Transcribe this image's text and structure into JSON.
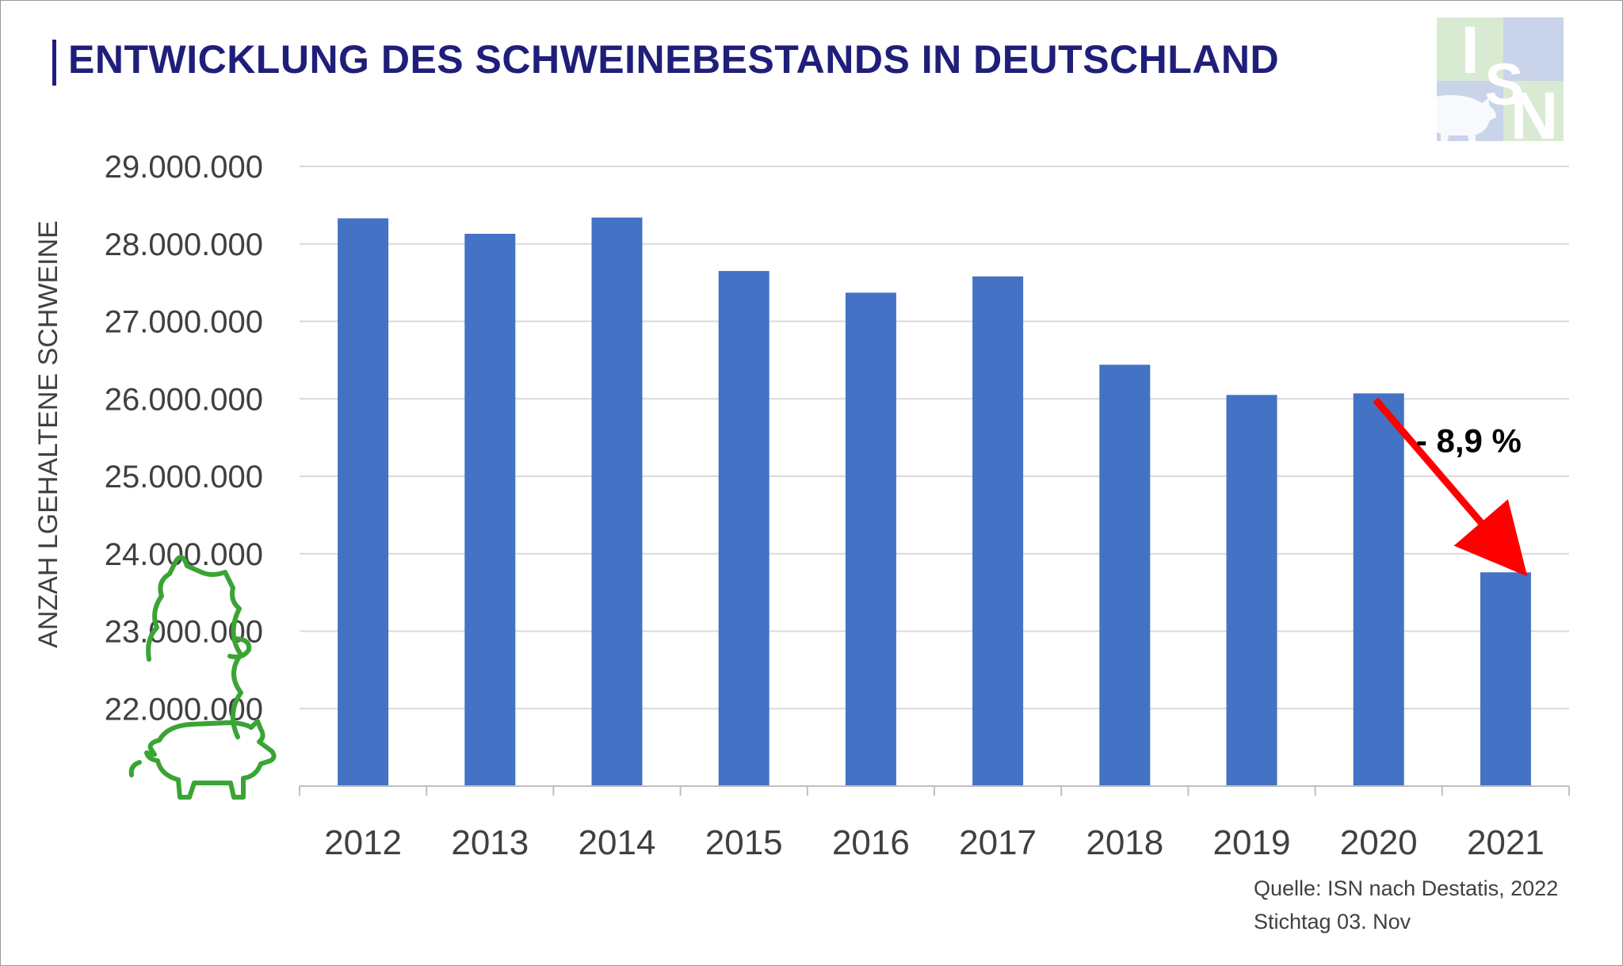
{
  "chart_data": {
    "type": "bar",
    "title": "ENTWICKLUNG DES SCHWEINEBESTANDS IN DEUTSCHLAND",
    "xlabel": "",
    "ylabel": "ANZAH LGEHALTENE SCHWEINE",
    "categories": [
      "2012",
      "2013",
      "2014",
      "2015",
      "2016",
      "2017",
      "2018",
      "2019",
      "2020",
      "2021"
    ],
    "values": [
      28330000,
      28130000,
      28340000,
      27650000,
      27370000,
      27580000,
      26440000,
      26050000,
      26070000,
      23760000
    ],
    "ylim": [
      21000000,
      29000000
    ],
    "yticks": [
      22000000,
      23000000,
      24000000,
      25000000,
      26000000,
      27000000,
      28000000,
      29000000
    ],
    "ytick_labels": [
      "22.000.000",
      "23.000.000",
      "24.000.000",
      "25.000.000",
      "26.000.000",
      "27.000.000",
      "28.000.000",
      "29.000.000"
    ],
    "grid": true,
    "bar_color": "#4472c4",
    "annotation": {
      "text": "- 8,9 %",
      "from_category": "2020",
      "to_category": "2021",
      "color": "#ff0000"
    }
  },
  "source": {
    "line1": "Quelle: ISN nach Destatis, 2022",
    "line2": "Stichtag 03. Nov"
  },
  "logo": {
    "letters": [
      "I",
      "S",
      "N"
    ],
    "colors": [
      "#d9ead3",
      "#c9d3ea",
      "#a7b6de"
    ]
  },
  "pig_icon": {
    "name": "pig-outline-icon",
    "color": "#3aa435"
  }
}
